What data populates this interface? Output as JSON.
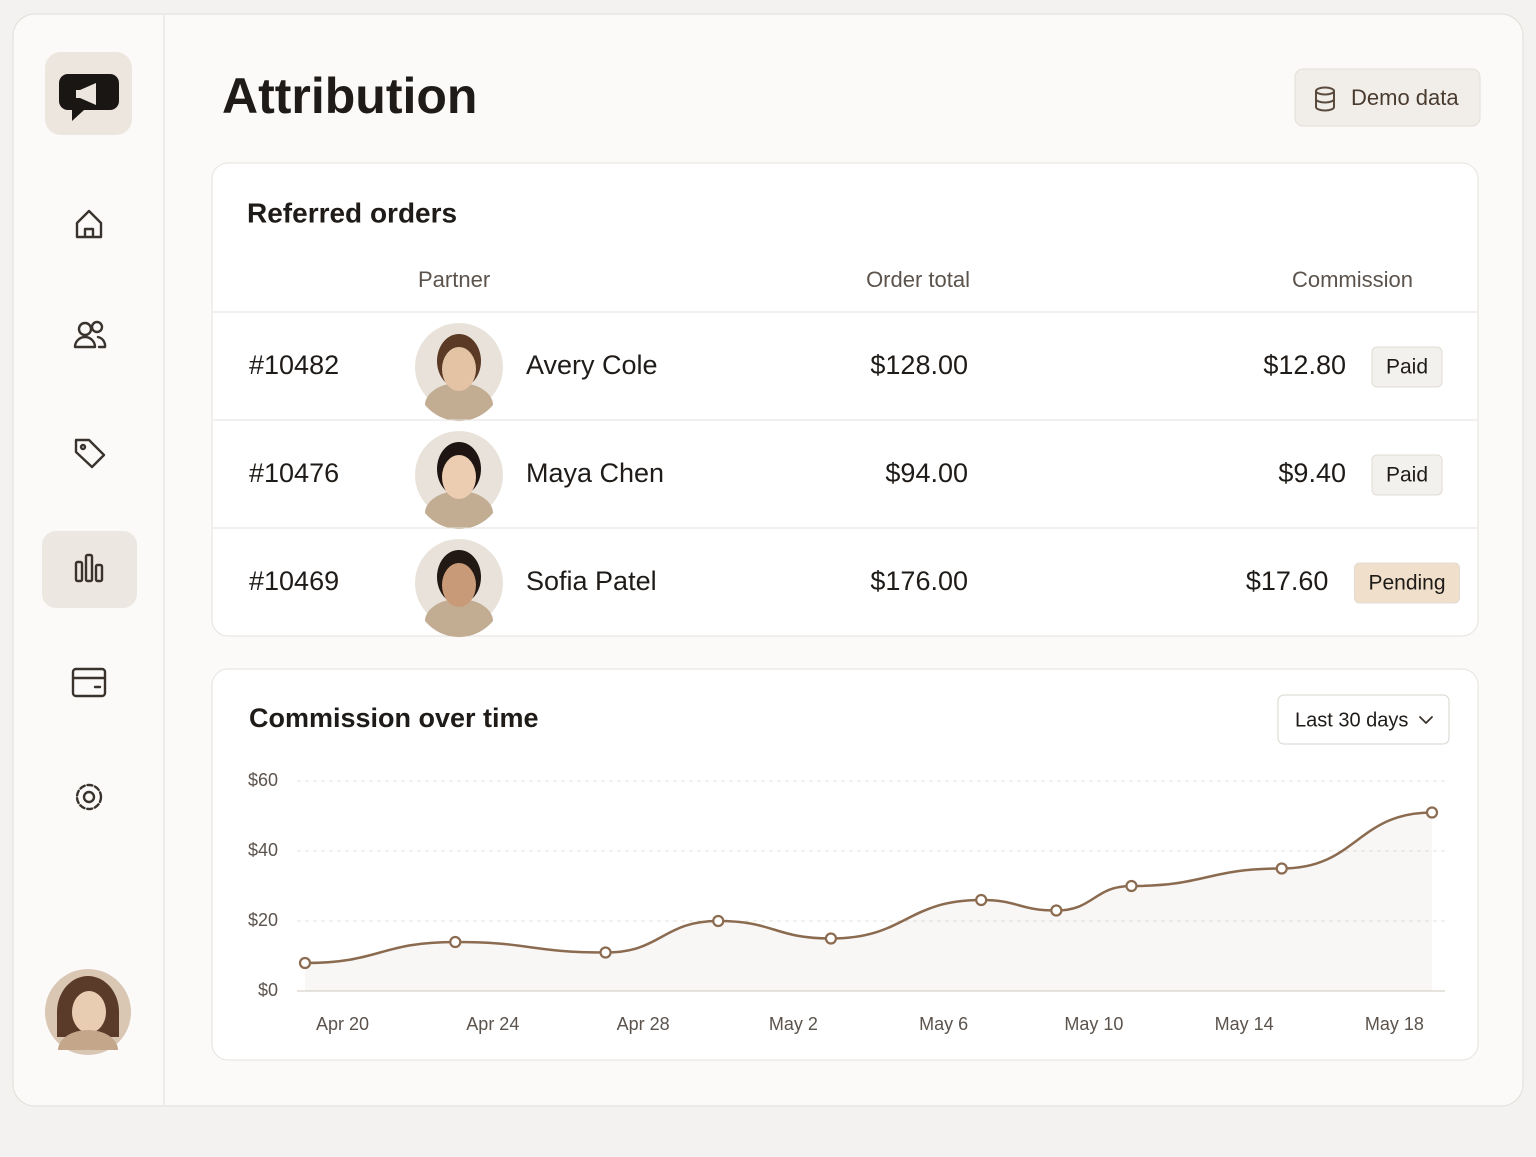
{
  "header": {
    "title": "Attribution",
    "button": "Demo data"
  },
  "orders": {
    "title": "Referred orders",
    "columns": [
      "Partner",
      "Order total",
      "Commission"
    ],
    "rows": [
      {
        "id": "#10482",
        "partner": "Avery Cole",
        "order_total": "$128.00",
        "commission": "$12.80",
        "status": "Paid",
        "badge_color": "#f3f1ee"
      },
      {
        "id": "#10476",
        "partner": "Maya Chen",
        "order_total": "$94.00",
        "commission": "$9.40",
        "status": "Paid",
        "badge_color": "#f3f1ee"
      },
      {
        "id": "#10469",
        "partner": "Sofia Patel",
        "order_total": "$176.00",
        "commission": "$17.60",
        "status": "Pending",
        "badge_color": "#efdfcb"
      }
    ]
  },
  "chart_data": {
    "type": "line",
    "title": "Commission over time",
    "range": "Last 30 days",
    "x": [
      "Apr 19",
      "Apr 23",
      "Apr 27",
      "Apr 30",
      "May 3",
      "May 7",
      "May 9",
      "May 11",
      "May 15",
      "May 19"
    ],
    "series": [
      {
        "color": "#8b6b50",
        "values": [
          8,
          14,
          11,
          20,
          15,
          26,
          23,
          30,
          35,
          51
        ]
      }
    ],
    "xlim": [
      "Apr 19",
      "May 19"
    ],
    "xticks": [
      "Apr 20",
      "Apr 24",
      "Apr 28",
      "May 2",
      "May 6",
      "May 10",
      "May 14",
      "May 18"
    ],
    "ylim": [
      0,
      60
    ],
    "yticks": [
      {
        "value": 0,
        "label": "$0"
      },
      {
        "value": 20,
        "label": "$20"
      },
      {
        "value": 40,
        "label": "$40"
      },
      {
        "value": 60,
        "label": "$60"
      }
    ],
    "grid": true
  }
}
